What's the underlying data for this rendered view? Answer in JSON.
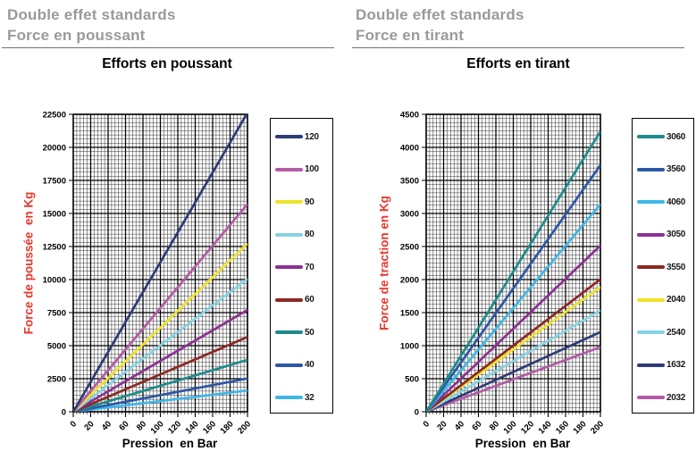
{
  "chart_data": [
    {
      "type": "line",
      "header": [
        "Double effet standards",
        "Force en poussant"
      ],
      "header_color": "#9a9a9a",
      "title": "Efforts en poussant",
      "xlabel": "Pression  en Bar",
      "ylabel": "Force de poussée  en Kg",
      "ylabel_color": "#e8382c",
      "xlim": [
        0,
        200
      ],
      "ylim": [
        0,
        22500
      ],
      "x_ticks": [
        0,
        20,
        40,
        60,
        80,
        100,
        120,
        140,
        160,
        180,
        200
      ],
      "y_ticks": [
        0,
        2500,
        5000,
        7500,
        10000,
        12500,
        15000,
        17500,
        20000,
        22500
      ],
      "x_unit": "bar",
      "y_unit": "kg",
      "grid": "fine black minor grid + major grid",
      "legend_position": "right",
      "series": [
        {
          "name": "120",
          "color": "#2e3b76",
          "x": [
            0,
            200
          ],
          "y": [
            0,
            22619
          ]
        },
        {
          "name": "100",
          "color": "#b45ba6",
          "x": [
            0,
            200
          ],
          "y": [
            0,
            15708
          ]
        },
        {
          "name": "90",
          "color": "#efe32a",
          "x": [
            0,
            200
          ],
          "y": [
            0,
            12723
          ]
        },
        {
          "name": "80",
          "color": "#85d3e3",
          "x": [
            0,
            200
          ],
          "y": [
            0,
            10053
          ]
        },
        {
          "name": "70",
          "color": "#8d3092",
          "x": [
            0,
            200
          ],
          "y": [
            0,
            7697
          ]
        },
        {
          "name": "60",
          "color": "#8c2823",
          "x": [
            0,
            200
          ],
          "y": [
            0,
            5655
          ]
        },
        {
          "name": "50",
          "color": "#1e8b8b",
          "x": [
            0,
            200
          ],
          "y": [
            0,
            3927
          ]
        },
        {
          "name": "40",
          "color": "#2c57a7",
          "x": [
            0,
            200
          ],
          "y": [
            0,
            2513
          ]
        },
        {
          "name": "32",
          "color": "#3eb7e8",
          "x": [
            0,
            200
          ],
          "y": [
            0,
            1608
          ]
        }
      ]
    },
    {
      "type": "line",
      "header": [
        "Double effet standards",
        "Force en tirant"
      ],
      "header_color": "#9a9a9a",
      "title": "Efforts en tirant",
      "xlabel": "Pression  en Bar",
      "ylabel": "Force de traction en Kg",
      "ylabel_color": "#e8382c",
      "xlim": [
        0,
        200
      ],
      "ylim": [
        0,
        4500
      ],
      "x_ticks": [
        0,
        20,
        40,
        60,
        80,
        100,
        120,
        140,
        160,
        180,
        200
      ],
      "y_ticks": [
        0,
        500,
        1000,
        1500,
        2000,
        2500,
        3000,
        3500,
        4000,
        4500
      ],
      "x_unit": "bar",
      "y_unit": "kg",
      "grid": "fine black minor grid + major grid",
      "legend_position": "right",
      "series": [
        {
          "name": "3060",
          "color": "#1e8b8b",
          "x": [
            0,
            200
          ],
          "y": [
            0,
            4241
          ]
        },
        {
          "name": "3560",
          "color": "#2c57a7",
          "x": [
            0,
            200
          ],
          "y": [
            0,
            3731
          ]
        },
        {
          "name": "4060",
          "color": "#3eb7e8",
          "x": [
            0,
            200
          ],
          "y": [
            0,
            3142
          ]
        },
        {
          "name": "3050",
          "color": "#8d3092",
          "x": [
            0,
            200
          ],
          "y": [
            0,
            2513
          ]
        },
        {
          "name": "3550",
          "color": "#8c2823",
          "x": [
            0,
            200
          ],
          "y": [
            0,
            2003
          ]
        },
        {
          "name": "2040",
          "color": "#efe32a",
          "x": [
            0,
            200
          ],
          "y": [
            0,
            1885
          ]
        },
        {
          "name": "2540",
          "color": "#85d3e3",
          "x": [
            0,
            200
          ],
          "y": [
            0,
            1532
          ]
        },
        {
          "name": "1632",
          "color": "#2e3b76",
          "x": [
            0,
            200
          ],
          "y": [
            0,
            1206
          ]
        },
        {
          "name": "2032",
          "color": "#b45ba6",
          "x": [
            0,
            200
          ],
          "y": [
            0,
            980
          ]
        }
      ]
    }
  ]
}
